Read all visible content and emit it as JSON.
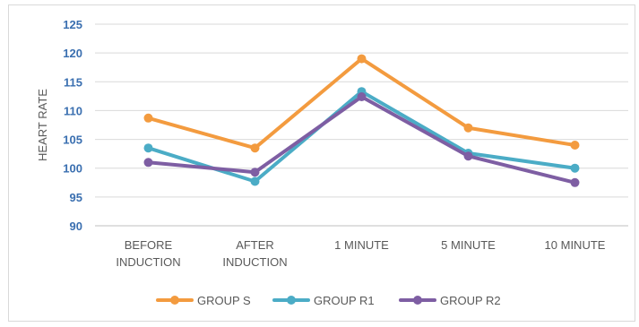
{
  "chart_data": {
    "type": "line",
    "title": "",
    "ylabel": "HEART RATE",
    "xlabel": "",
    "categories": [
      [
        "BEFORE",
        "INDUCTION"
      ],
      [
        "AFTER",
        "INDUCTION"
      ],
      [
        "1 MINUTE"
      ],
      [
        "5 MINUTE"
      ],
      [
        "10 MINUTE"
      ]
    ],
    "yticks": [
      90,
      95,
      100,
      105,
      110,
      115,
      120,
      125
    ],
    "ylim": [
      90,
      125
    ],
    "grid": true,
    "legend_position": "bottom",
    "series": [
      {
        "name": "GROUP S",
        "color": "#f39b3f",
        "values": [
          108.7,
          103.5,
          119.0,
          107.0,
          104.0
        ]
      },
      {
        "name": "GROUP R1",
        "color": "#4bacc6",
        "values": [
          103.5,
          97.7,
          113.3,
          102.6,
          100.0
        ]
      },
      {
        "name": "GROUP R2",
        "color": "#7e5ea3",
        "values": [
          101.0,
          99.3,
          112.4,
          102.1,
          97.5
        ]
      }
    ]
  }
}
